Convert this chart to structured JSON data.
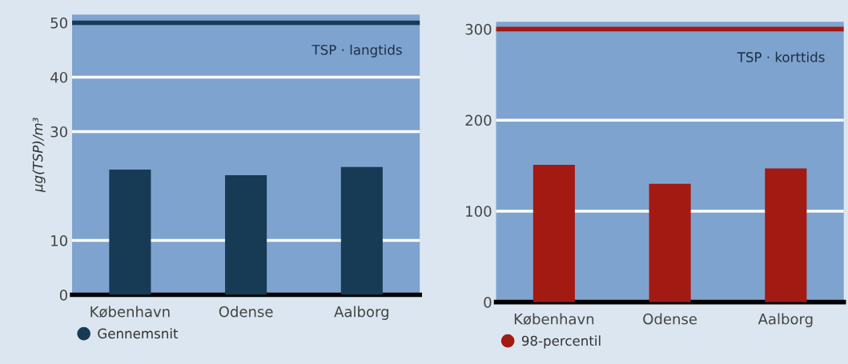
{
  "chart_data": [
    {
      "type": "bar",
      "ylabel": "µg(TSP)/m³",
      "annotations": [
        "TSP · langtids"
      ],
      "categories": [
        "København",
        "Odense",
        "Aalborg"
      ],
      "series": [
        {
          "name": "Gennemsnit",
          "color": "#173b55",
          "values": [
            23,
            22,
            23.5
          ]
        }
      ],
      "ylim": [
        0,
        51.5
      ],
      "yticks": [
        0,
        10,
        30,
        40,
        50
      ],
      "grid": "y",
      "legend": "bottom left",
      "ref_lines": [
        {
          "axis": "y",
          "value": 50,
          "color": "#173b55"
        }
      ]
    },
    {
      "type": "bar",
      "annotations": [
        "TSP · korttids"
      ],
      "categories": [
        "København",
        "Odense",
        "Aalborg"
      ],
      "series": [
        {
          "name": "98-percentil",
          "color": "#a31a12",
          "values": [
            151,
            130,
            147
          ]
        }
      ],
      "ylim": [
        0,
        308
      ],
      "yticks": [
        0,
        100,
        200,
        300
      ],
      "grid": "y",
      "legend": "bottom left",
      "ref_lines": [
        {
          "axis": "y",
          "value": 300,
          "color": "#a31a12"
        }
      ]
    }
  ]
}
